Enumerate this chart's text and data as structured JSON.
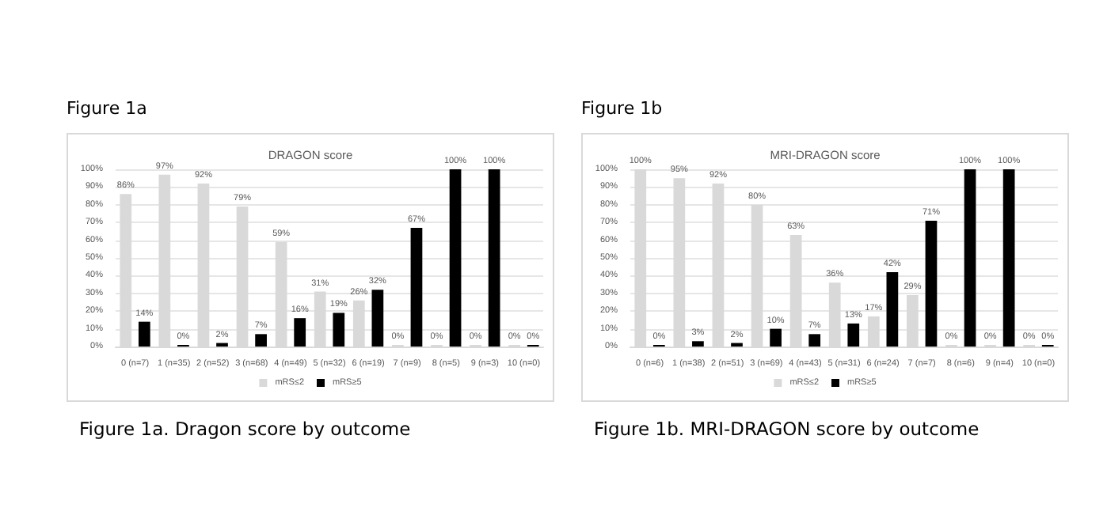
{
  "chart_data": [
    {
      "type": "bar",
      "title": "DRAGON score",
      "annotations": [
        "Figure 1a",
        "Figure 1a. Dragon score by outcome"
      ],
      "categories": [
        "0 (n=7)",
        "1 (n=35)",
        "2 (n=52)",
        "3 (n=68)",
        "4 (n=49)",
        "5 (n=32)",
        "6 (n=19)",
        "7 (n=9)",
        "8 (n=5)",
        "9 (n=3)",
        "10 (n=0)"
      ],
      "series": [
        {
          "name": "mRS≤2",
          "color": "#d9d9d9",
          "values": [
            86,
            97,
            92,
            79,
            59,
            31,
            26,
            0,
            0,
            0,
            0
          ],
          "value_labels": [
            "86%",
            "97%",
            "92%",
            "79%",
            "59%",
            "31%",
            "26%",
            "0%",
            "0%",
            "0%",
            "0%"
          ]
        },
        {
          "name": "mRS≥5",
          "color": "#000000",
          "values": [
            14,
            0,
            2,
            7,
            16,
            19,
            32,
            67,
            100,
            100,
            0
          ],
          "value_labels": [
            "14%",
            "0%",
            "2%",
            "7%",
            "16%",
            "19%",
            "32%",
            "67%",
            "100%",
            "100%",
            "0%"
          ]
        }
      ],
      "ylim": [
        0,
        100
      ],
      "yticks": [
        {
          "value": 0,
          "label": "0%"
        },
        {
          "value": 10,
          "label": "10%"
        },
        {
          "value": 20,
          "label": "20%"
        },
        {
          "value": 30,
          "label": "30%"
        },
        {
          "value": 40,
          "label": "40%"
        },
        {
          "value": 50,
          "label": "50%"
        },
        {
          "value": 60,
          "label": "60%"
        },
        {
          "value": 70,
          "label": "70%"
        },
        {
          "value": 80,
          "label": "80%"
        },
        {
          "value": 90,
          "label": "90%"
        },
        {
          "value": 100,
          "label": "100%"
        }
      ],
      "grid": "y",
      "legend": "bottom"
    },
    {
      "type": "bar",
      "title": "MRI-DRAGON score",
      "annotations": [
        "Figure 1b",
        "Figure 1b. MRI-DRAGON score by outcome"
      ],
      "categories": [
        "0 (n=6)",
        "1 (n=38)",
        "2 (n=51)",
        "3 (n=69)",
        "4 (n=43)",
        "5 (n=31)",
        "6 (n=24)",
        "7 (n=7)",
        "8 (n=6)",
        "9 (n=4)",
        "10 (n=0)"
      ],
      "series": [
        {
          "name": "mRS≤2",
          "color": "#d9d9d9",
          "values": [
            100,
            95,
            92,
            80,
            63,
            36,
            17,
            29,
            0,
            0,
            0
          ],
          "value_labels": [
            "100%",
            "95%",
            "92%",
            "80%",
            "63%",
            "36%",
            "17%",
            "29%",
            "0%",
            "0%",
            "0%"
          ]
        },
        {
          "name": "mRS≥5",
          "color": "#000000",
          "values": [
            0,
            3,
            2,
            10,
            7,
            13,
            42,
            71,
            100,
            100,
            0
          ],
          "value_labels": [
            "0%",
            "3%",
            "2%",
            "10%",
            "7%",
            "13%",
            "42%",
            "71%",
            "100%",
            "100%",
            "0%"
          ]
        }
      ],
      "ylim": [
        0,
        100
      ],
      "yticks": [
        {
          "value": 0,
          "label": "0%"
        },
        {
          "value": 10,
          "label": "10%"
        },
        {
          "value": 20,
          "label": "20%"
        },
        {
          "value": 30,
          "label": "30%"
        },
        {
          "value": 40,
          "label": "40%"
        },
        {
          "value": 50,
          "label": "50%"
        },
        {
          "value": 60,
          "label": "60%"
        },
        {
          "value": 70,
          "label": "70%"
        },
        {
          "value": 80,
          "label": "80%"
        },
        {
          "value": 90,
          "label": "90%"
        },
        {
          "value": 100,
          "label": "100%"
        }
      ],
      "grid": "y",
      "legend": "bottom"
    }
  ]
}
